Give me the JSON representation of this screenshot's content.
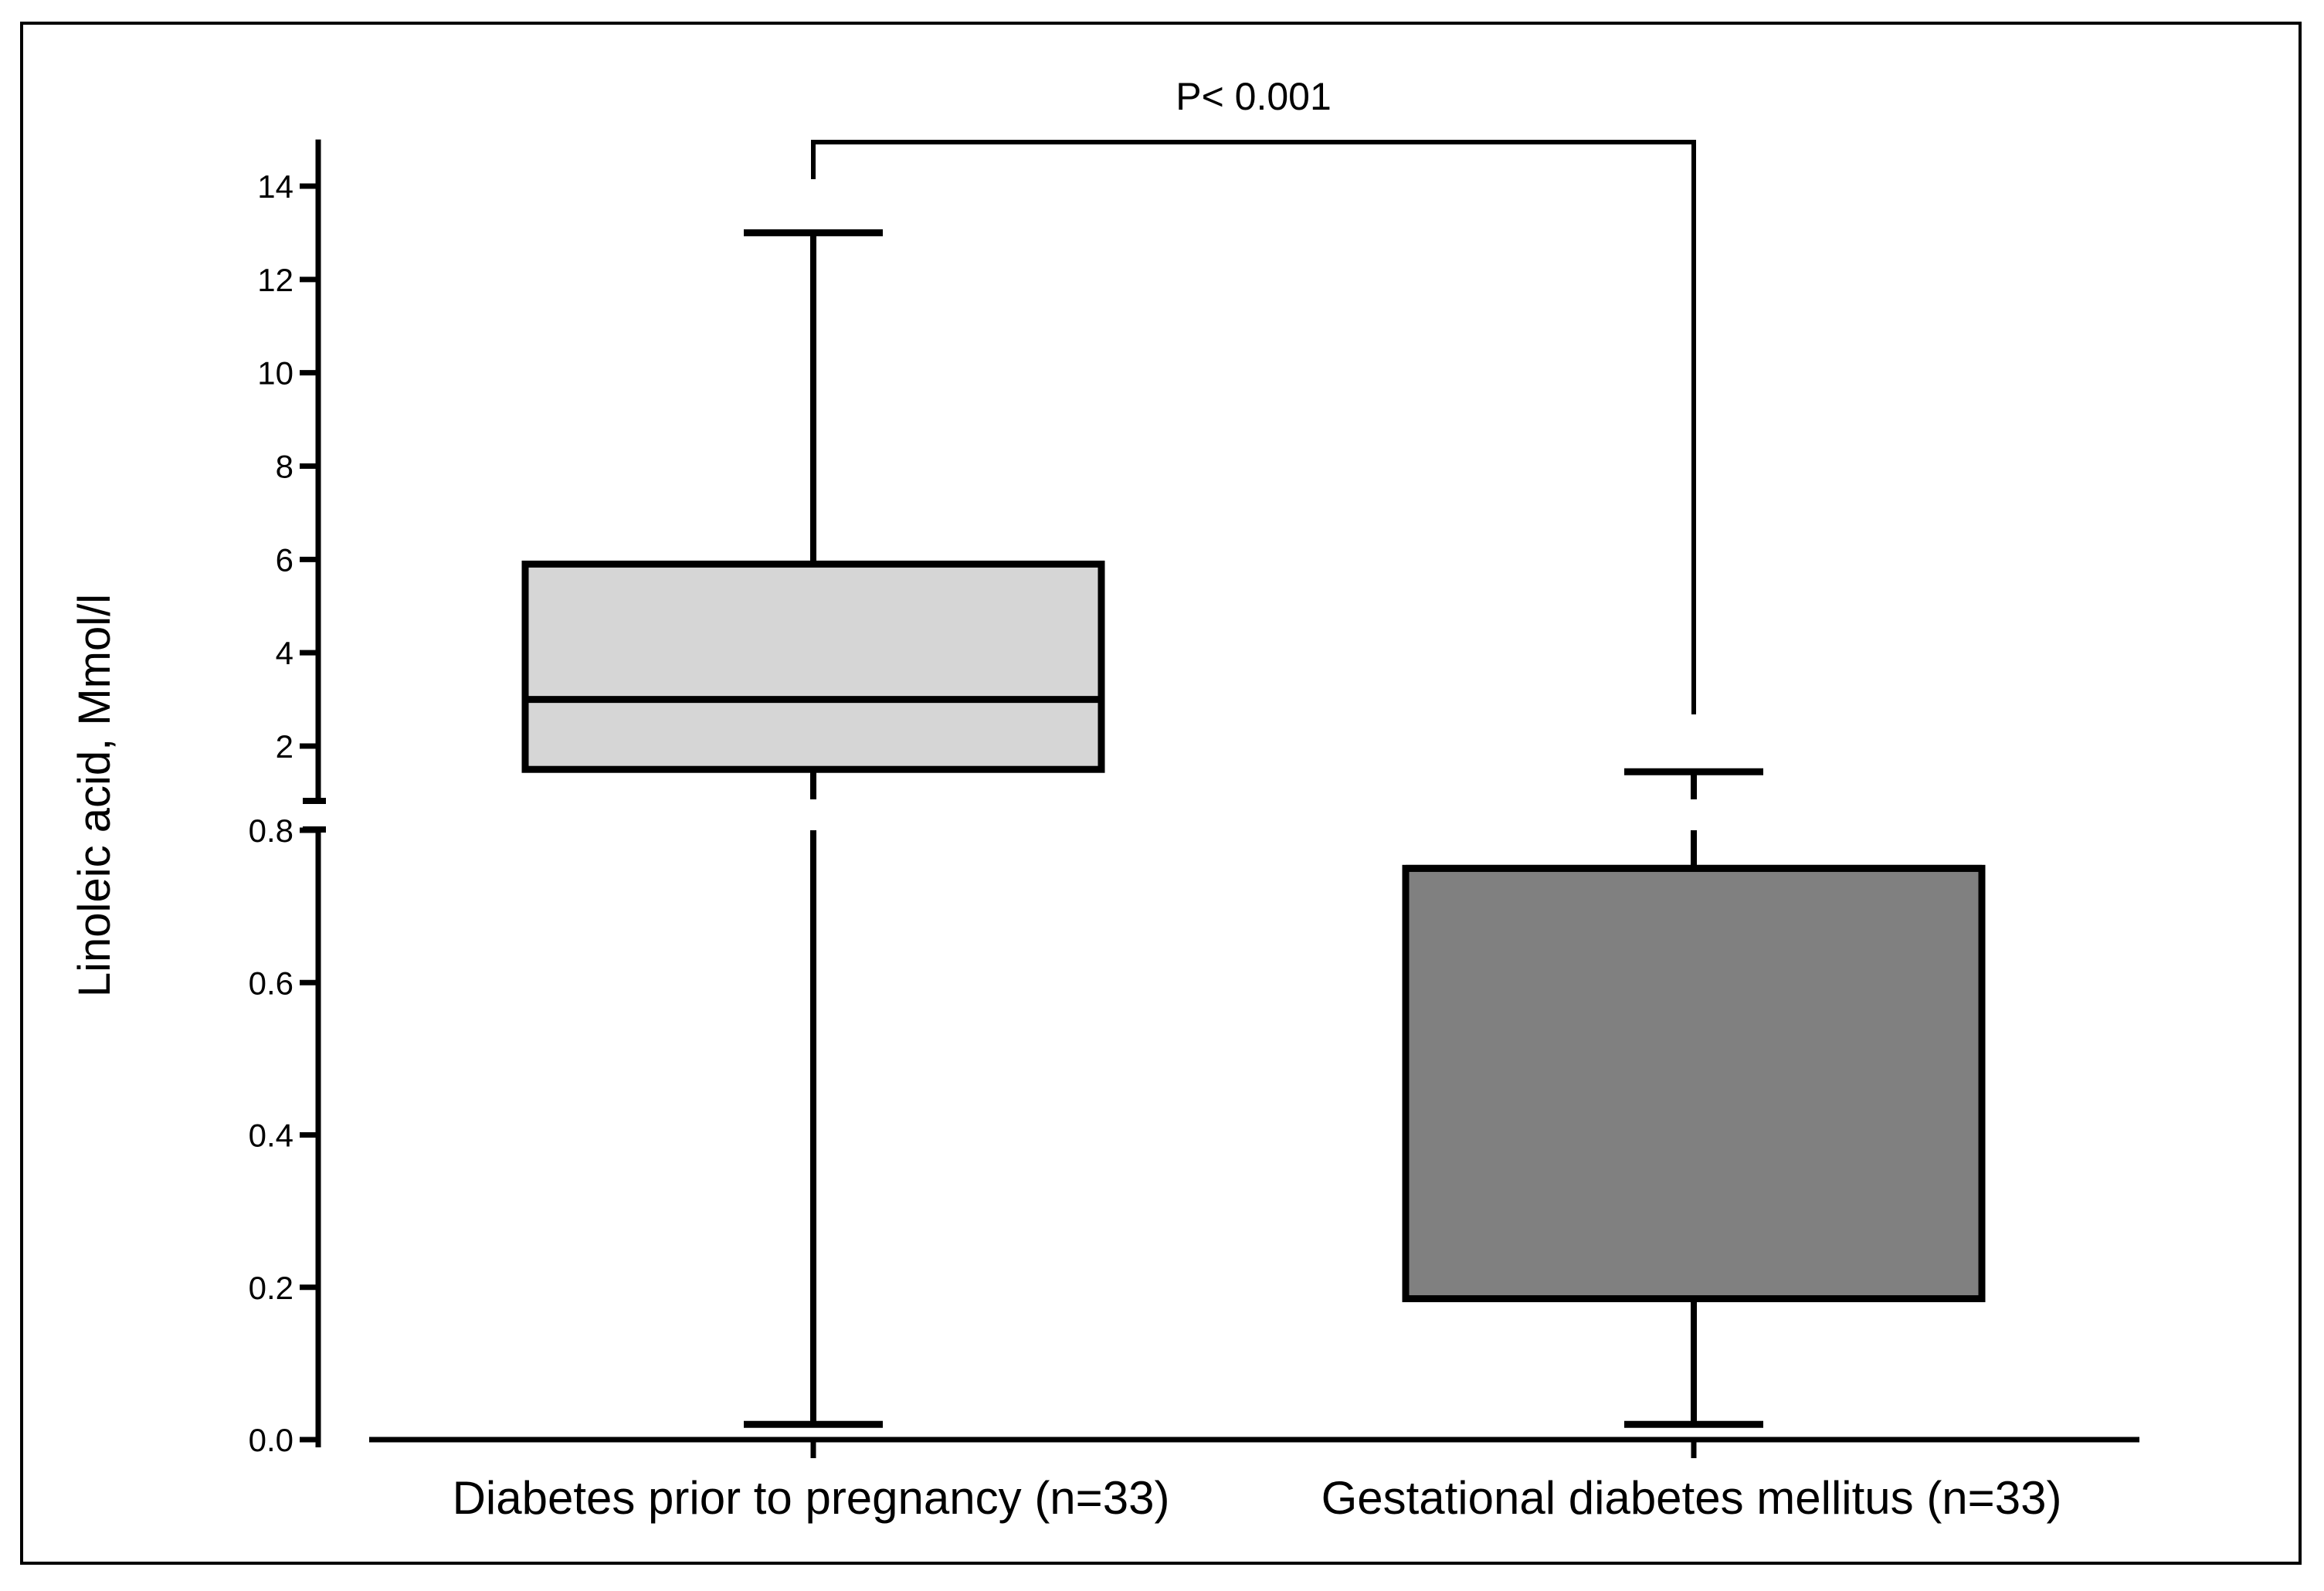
{
  "chart_data": {
    "type": "boxplot",
    "ylabel": "Linoleic acid, Mmol/l",
    "xlabel": "",
    "y_axis": {
      "broken": true,
      "lower_segment": {
        "range": [
          0.0,
          0.8
        ],
        "ticks": [
          "0.0",
          "0.2",
          "0.4",
          "0.6",
          "0.8"
        ]
      },
      "upper_segment": {
        "range": [
          1.0,
          15.0
        ],
        "ticks": [
          "2",
          "4",
          "6",
          "8",
          "10",
          "12",
          "14"
        ]
      }
    },
    "categories": [
      "Diabetes prior to pregnancy (n=33)",
      "Gestational diabetes mellitus (n=33)"
    ],
    "boxes": [
      {
        "name": "Diabetes prior to pregnancy (n=33)",
        "min": 0.02,
        "q1": 1.5,
        "median": 3.0,
        "q3": 5.9,
        "max": 13.0,
        "fill": "#d6d6d6"
      },
      {
        "name": "Gestational diabetes mellitus (n=33)",
        "min": 0.02,
        "q1": 0.185,
        "median": 0.75,
        "q3": 0.75,
        "max": 1.45,
        "fill": "#808080"
      }
    ],
    "annotation": {
      "text": "P< 0.001"
    },
    "grid": false,
    "legend": "none"
  }
}
